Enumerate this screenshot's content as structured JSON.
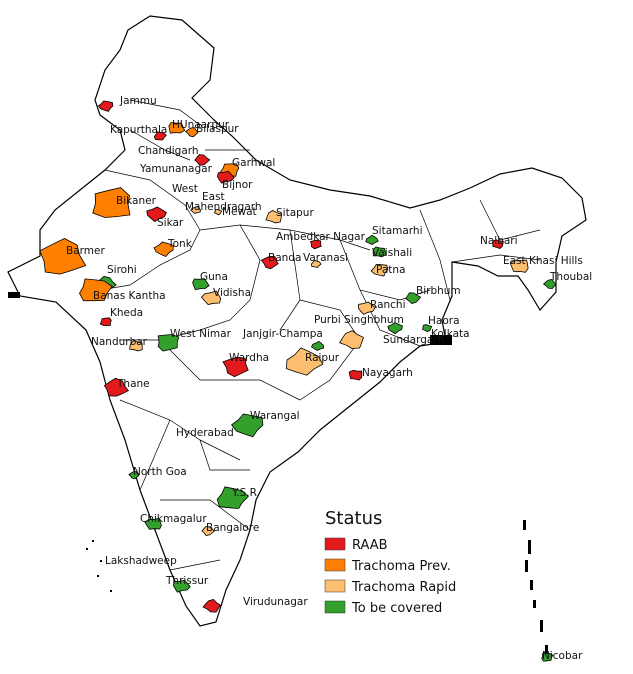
{
  "legend": {
    "title": "Status",
    "items": [
      {
        "label": "RAAB",
        "color": "#e31a1c"
      },
      {
        "label": "Trachoma Prev.",
        "color": "#ff7f00"
      },
      {
        "label": "Trachoma Rapid",
        "color": "#fdbf6f"
      },
      {
        "label": "To be covered",
        "color": "#33a02c"
      }
    ]
  },
  "districts": [
    {
      "name": "Jammu",
      "status": "RAAB"
    },
    {
      "name": "HUnaarpur",
      "status": "Trachoma Prev."
    },
    {
      "name": "Bilaspur",
      "status": "Trachoma Prev."
    },
    {
      "name": "Kapurthala",
      "status": "RAAB"
    },
    {
      "name": "Chandigarh",
      "status": null
    },
    {
      "name": "Yamunanagar",
      "status": "RAAB"
    },
    {
      "name": "Garhwal",
      "status": "Trachoma Prev."
    },
    {
      "name": "Bijnor",
      "status": "RAAB"
    },
    {
      "name": "West",
      "status": null
    },
    {
      "name": "East",
      "status": null
    },
    {
      "name": "Mahendragarh",
      "status": "Trachoma Rapid"
    },
    {
      "name": "Mewat",
      "status": "Trachoma Rapid"
    },
    {
      "name": "Bikaner",
      "status": "Trachoma Prev."
    },
    {
      "name": "Sikar",
      "status": "RAAB"
    },
    {
      "name": "Sitapur",
      "status": "Trachoma Rapid"
    },
    {
      "name": "Ambedkar Nagar",
      "status": "RAAB"
    },
    {
      "name": "Sitamarhi",
      "status": "To be covered"
    },
    {
      "name": "Nalbari",
      "status": "RAAB"
    },
    {
      "name": "Barmer",
      "status": "Trachoma Prev."
    },
    {
      "name": "Tonk",
      "status": "Trachoma Prev."
    },
    {
      "name": "Vaishali",
      "status": "To be covered"
    },
    {
      "name": "Banda",
      "status": "RAAB"
    },
    {
      "name": "Varanasi",
      "status": "Trachoma Rapid"
    },
    {
      "name": "East Khasi Hills",
      "status": "Trachoma Rapid"
    },
    {
      "name": "Sirohi",
      "status": "To be covered"
    },
    {
      "name": "Patna",
      "status": "Trachoma Rapid"
    },
    {
      "name": "Guna",
      "status": "To be covered"
    },
    {
      "name": "Thoubal",
      "status": "To be covered"
    },
    {
      "name": "Banas Kantha",
      "status": "Trachoma Prev."
    },
    {
      "name": "Vidisha",
      "status": "Trachoma Rapid"
    },
    {
      "name": "Birbhum",
      "status": "To be covered"
    },
    {
      "name": "Kheda",
      "status": "RAAB"
    },
    {
      "name": "Ranchi",
      "status": "Trachoma Rapid"
    },
    {
      "name": "Purbi Singhbhum",
      "status": "Trachoma Rapid"
    },
    {
      "name": "West Nimar",
      "status": "To be covered"
    },
    {
      "name": "Janjgir-Champa",
      "status": "To be covered"
    },
    {
      "name": "Haora",
      "status": "To be covered"
    },
    {
      "name": "Kolkata",
      "status": null
    },
    {
      "name": "Sundargarh",
      "status": "To be covered"
    },
    {
      "name": "Nandurbar",
      "status": "Trachoma Rapid"
    },
    {
      "name": "Wardha",
      "status": "RAAB"
    },
    {
      "name": "Raipur",
      "status": "Trachoma Rapid"
    },
    {
      "name": "Nayagarh",
      "status": "RAAB"
    },
    {
      "name": "Thane",
      "status": "RAAB"
    },
    {
      "name": "Warangal",
      "status": "To be covered"
    },
    {
      "name": "Hyderabad",
      "status": null
    },
    {
      "name": "North Goa",
      "status": "To be covered"
    },
    {
      "name": "Y.S.R.",
      "status": "To be covered"
    },
    {
      "name": "Chikmagalur",
      "status": "To be covered"
    },
    {
      "name": "Bangalore",
      "status": "Trachoma Rapid"
    },
    {
      "name": "Lakshadweep",
      "status": null
    },
    {
      "name": "Thrissur",
      "status": "To be covered"
    },
    {
      "name": "Virudunagar",
      "status": "RAAB"
    },
    {
      "name": "Nicobar",
      "status": "To be covered"
    }
  ]
}
